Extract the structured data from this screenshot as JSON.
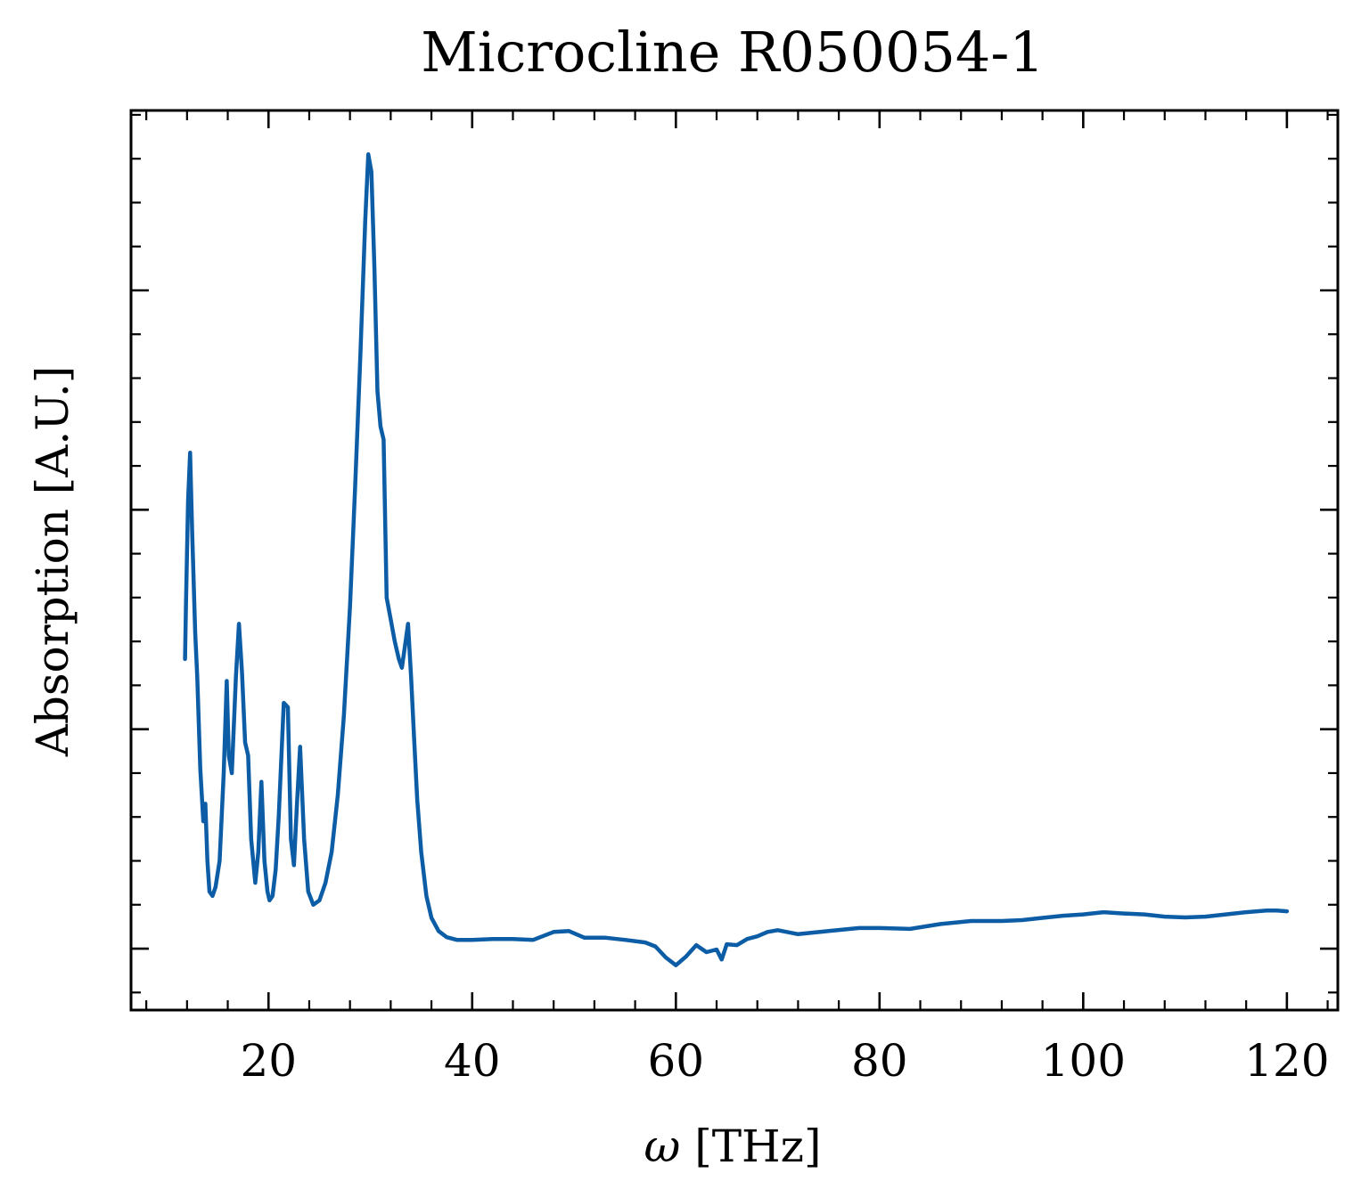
{
  "chart_data": {
    "type": "line",
    "title": "Microcline R050054-1",
    "xlabel_symbol": "ω",
    "xlabel_unit": "[THz]",
    "ylabel": "Absorption [A.U.]",
    "xlim": [
      6.5,
      125
    ],
    "ylim": [
      -0.14,
      1.91
    ],
    "x_ticks": [
      20,
      40,
      60,
      80,
      100,
      120
    ],
    "x_tick_labels": [
      "20",
      "40",
      "60",
      "80",
      "100",
      "120"
    ],
    "x_minor_step": 4,
    "y_ticks": [
      0,
      0.5,
      1.0,
      1.5
    ],
    "y_minor_step": 0.1,
    "grid": false,
    "legend": "none",
    "series": [
      {
        "color": "#0c5da5",
        "x": [
          11.8,
          11.9,
          12.1,
          12.3,
          12.5,
          12.8,
          13.0,
          13.3,
          13.6,
          13.8,
          14.0,
          14.2,
          14.5,
          14.8,
          15.2,
          15.6,
          15.9,
          16.1,
          16.4,
          16.8,
          17.1,
          17.4,
          17.7,
          18.0,
          18.3,
          18.7,
          19.0,
          19.3,
          19.6,
          19.9,
          20.1,
          20.4,
          20.7,
          21.0,
          21.5,
          21.9,
          22.2,
          22.5,
          22.8,
          23.1,
          23.5,
          23.9,
          24.4,
          25.0,
          25.6,
          26.2,
          26.8,
          27.4,
          28.0,
          28.5,
          29.0,
          29.5,
          29.8,
          30.1,
          30.4,
          30.7,
          31.0,
          31.3,
          31.6,
          32.0,
          32.4,
          32.8,
          33.1,
          33.4,
          33.7,
          34.0,
          34.3,
          34.6,
          35.0,
          35.5,
          36.0,
          36.7,
          37.5,
          38.5,
          40.0,
          42.0,
          44.0,
          46.0,
          48.0,
          49.5,
          51.0,
          53.0,
          55.0,
          57.0,
          58.0,
          59.0,
          60.0,
          61.0,
          62.0,
          63.0,
          64.0,
          64.5,
          65.0,
          66.0,
          67.0,
          68.0,
          69.0,
          70.0,
          72.0,
          75.0,
          78.0,
          80.0,
          83.0,
          86.0,
          89.0,
          92.0,
          94.0,
          96.0,
          98.0,
          100.0,
          102.0,
          104.0,
          106.0,
          108.0,
          110.0,
          112.0,
          114.0,
          116.0,
          118.0,
          119.0,
          120.0
        ],
        "y": [
          0.66,
          0.79,
          1.02,
          1.13,
          0.95,
          0.72,
          0.62,
          0.41,
          0.29,
          0.33,
          0.2,
          0.13,
          0.12,
          0.14,
          0.2,
          0.4,
          0.61,
          0.44,
          0.4,
          0.62,
          0.74,
          0.63,
          0.47,
          0.44,
          0.25,
          0.15,
          0.22,
          0.38,
          0.2,
          0.13,
          0.11,
          0.12,
          0.18,
          0.3,
          0.56,
          0.55,
          0.25,
          0.19,
          0.33,
          0.46,
          0.25,
          0.13,
          0.1,
          0.11,
          0.15,
          0.22,
          0.35,
          0.53,
          0.78,
          1.05,
          1.34,
          1.66,
          1.81,
          1.77,
          1.55,
          1.27,
          1.19,
          1.16,
          0.8,
          0.75,
          0.7,
          0.66,
          0.64,
          0.69,
          0.74,
          0.62,
          0.48,
          0.34,
          0.22,
          0.12,
          0.07,
          0.04,
          0.026,
          0.02,
          0.02,
          0.022,
          0.022,
          0.02,
          0.038,
          0.04,
          0.025,
          0.025,
          0.02,
          0.014,
          0.005,
          -0.02,
          -0.038,
          -0.018,
          0.008,
          -0.008,
          -0.002,
          -0.025,
          0.01,
          0.008,
          0.022,
          0.028,
          0.038,
          0.042,
          0.033,
          0.04,
          0.047,
          0.047,
          0.045,
          0.056,
          0.063,
          0.063,
          0.065,
          0.07,
          0.075,
          0.078,
          0.083,
          0.08,
          0.078,
          0.073,
          0.071,
          0.073,
          0.078,
          0.083,
          0.087,
          0.087,
          0.085
        ]
      }
    ]
  }
}
